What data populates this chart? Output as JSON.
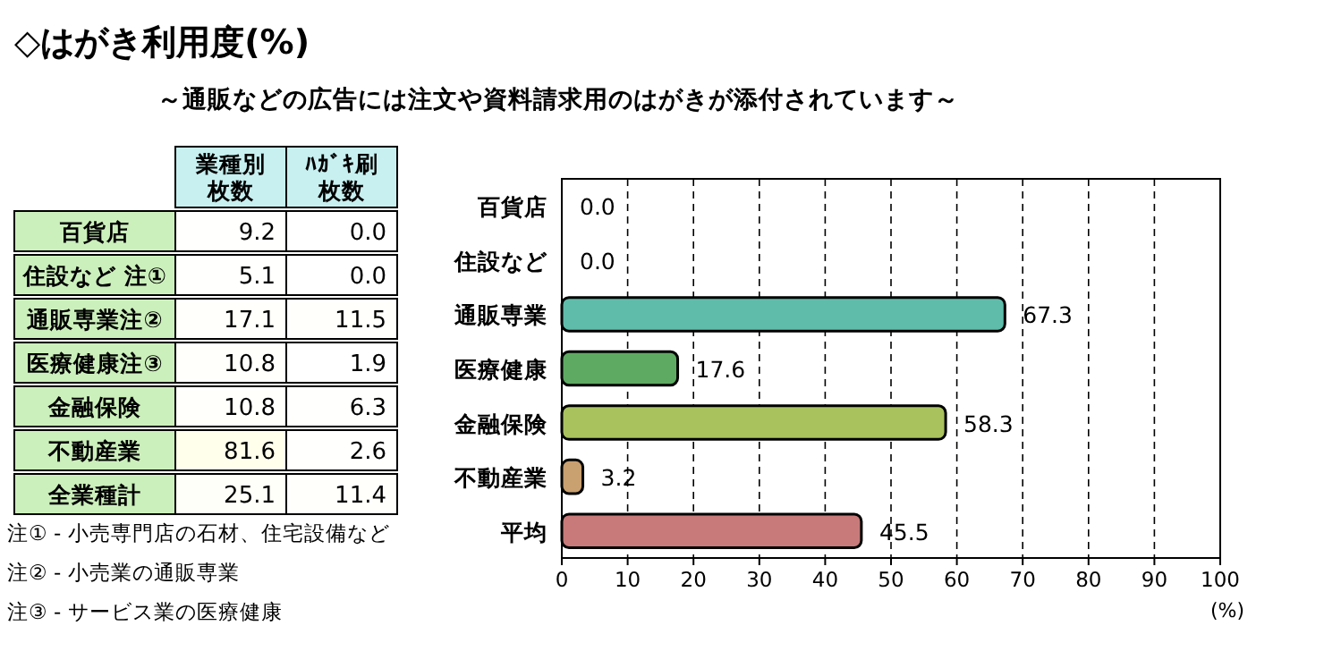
{
  "chart_data": [
    {
      "type": "heatmap",
      "title": "◇はがき利用度(%)",
      "subtitle": "～通販などの広告には注文や資料請求用のはがきが添付されています～",
      "categories": [
        "業種別枚数",
        "ﾊｶﾞｷ刷枚数"
      ],
      "y_categories": [
        "百貨店",
        "住設など 注①",
        "通販専業注②",
        "医療健康注③",
        "金融保険",
        "不動産業",
        "全業種計"
      ],
      "cells": [
        [
          9.2,
          0.0
        ],
        [
          5.1,
          0.0
        ],
        [
          17.1,
          11.5
        ],
        [
          10.8,
          1.9
        ],
        [
          10.8,
          6.3
        ],
        [
          81.6,
          2.6
        ],
        [
          25.1,
          11.4
        ]
      ],
      "cell_labels": [
        [
          "9.2",
          "0.0"
        ],
        [
          "5.1",
          "0.0"
        ],
        [
          "17.1",
          "11.5"
        ],
        [
          "10.8",
          "1.9"
        ],
        [
          "10.8",
          "6.3"
        ],
        [
          "81.6",
          "2.6"
        ],
        [
          "25.1",
          "11.4"
        ]
      ],
      "annotations": [
        "注① - 小売専門店の石材、住宅設備など",
        "注② - 小売業の通販専業",
        "注③ - サービス業の医療健康"
      ]
    },
    {
      "type": "bar",
      "orientation": "horizontal",
      "categories": [
        "百貨店",
        "住設など",
        "通販専業",
        "医療健康",
        "金融保険",
        "不動産業",
        "平均"
      ],
      "values": [
        0.0,
        0.0,
        67.3,
        17.6,
        58.3,
        3.2,
        45.5
      ],
      "colors": [
        "#222222",
        "#222222",
        "#5fbcaa",
        "#5eaa62",
        "#a9c25e",
        "#c9a070",
        "#c87a7a"
      ],
      "xlim": [
        0,
        100
      ],
      "xticks": [
        0,
        10,
        20,
        30,
        40,
        50,
        60,
        70,
        80,
        90,
        100
      ],
      "xlabel": "(%)",
      "grid": "x",
      "value_labels": [
        "0.0",
        "0.0",
        "67.3",
        "17.6",
        "58.3",
        "3.2",
        "45.5"
      ]
    }
  ]
}
